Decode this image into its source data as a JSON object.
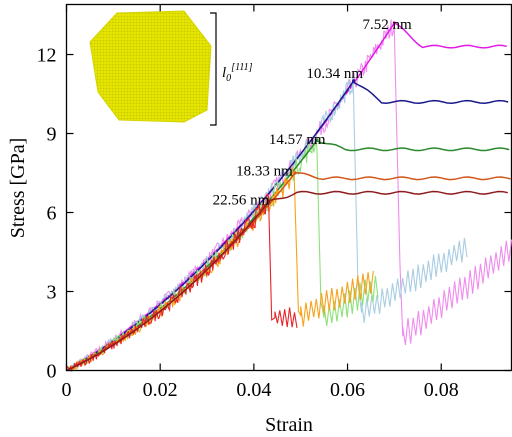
{
  "chart_data": {
    "type": "line",
    "xlabel": "Strain",
    "ylabel": "Stress [GPa]",
    "xlim": [
      0,
      0.095
    ],
    "ylim": [
      0,
      13.9
    ],
    "xticks": [
      0,
      0.02,
      0.04,
      0.06,
      0.08
    ],
    "xtick_labels": [
      "0",
      "0.02",
      "0.04",
      "0.06",
      "0.08"
    ],
    "yticks": [
      0,
      3,
      6,
      9,
      12
    ],
    "ytick_labels": [
      "0",
      "3",
      "6",
      "9",
      "12"
    ],
    "grid": false,
    "inset_label": "l",
    "inset_label_sub": "0",
    "inset_label_sup": "[111]",
    "series": [
      {
        "name": "7.52 nm",
        "color": "#e11be6",
        "light_color": "#f08cee",
        "peak_x": 0.07,
        "peak_y": 13.2,
        "plateau_y": 12.3,
        "drop_x": 0.0712,
        "post_y0": 1.3,
        "post_y1": 4.6,
        "post_amp": 0.45,
        "post_start": 0.0718,
        "post_end": 0.095,
        "label_x": 0.0632,
        "label_y": 13.15
      },
      {
        "name": "10.34 nm",
        "color": "#1a1a8c",
        "light_color": "#a9cde3",
        "peak_x": 0.0613,
        "peak_y": 11.0,
        "plateau_y": 10.2,
        "drop_x": 0.0622,
        "post_y0": 2.2,
        "post_y1": 4.7,
        "post_amp": 0.4,
        "post_start": 0.063,
        "post_end": 0.0855,
        "label_x": 0.0512,
        "label_y": 11.3
      },
      {
        "name": "14.57 nm",
        "color": "#2b8a2b",
        "light_color": "#8fe07a",
        "peak_x": 0.0535,
        "peak_y": 8.75,
        "plateau_y": 8.4,
        "drop_x": 0.0543,
        "post_y0": 2.0,
        "post_y1": 3.2,
        "post_amp": 0.45,
        "post_start": 0.055,
        "post_end": 0.0665,
        "label_x": 0.0432,
        "label_y": 8.8
      },
      {
        "name": "18.33 nm",
        "color": "#d2571b",
        "light_color": "#f7a21b",
        "peak_x": 0.0488,
        "peak_y": 7.5,
        "plateau_y": 7.3,
        "drop_x": 0.0495,
        "post_y0": 2.1,
        "post_y1": 3.4,
        "post_amp": 0.4,
        "post_start": 0.05,
        "post_end": 0.0655,
        "label_x": 0.0362,
        "label_y": 7.6
      },
      {
        "name": "22.56 nm",
        "color": "#8e1c1c",
        "light_color": "#e8242a",
        "peak_x": 0.0432,
        "peak_y": 6.4,
        "plateau_y": 6.75,
        "drop_x": 0.0438,
        "post_y0": 2.0,
        "post_y1": 2.0,
        "post_amp": 0.3,
        "post_start": 0.0445,
        "post_end": 0.0492,
        "label_x": 0.0312,
        "label_y": 6.5
      }
    ]
  }
}
